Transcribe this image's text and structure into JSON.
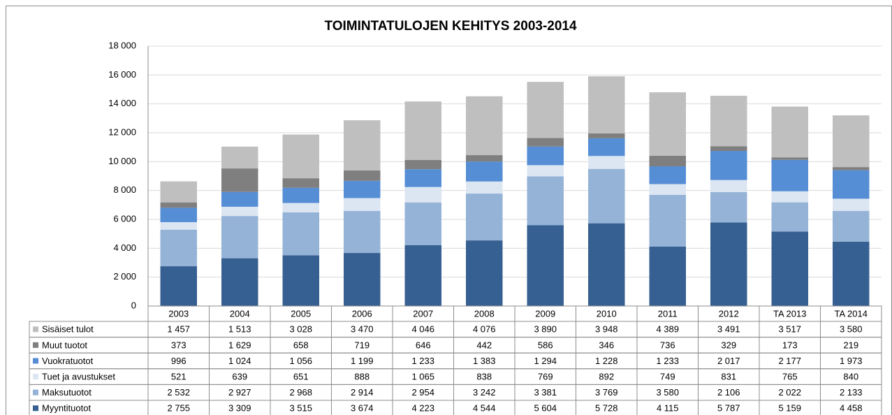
{
  "chart_data": {
    "type": "bar",
    "stacked": true,
    "title": "TOIMINTATULOJEN KEHITYS 2003-2014",
    "categories": [
      "2003",
      "2004",
      "2005",
      "2006",
      "2007",
      "2008",
      "2009",
      "2010",
      "2011",
      "2012",
      "TA 2013",
      "TA 2014"
    ],
    "ylim": [
      0,
      18000
    ],
    "yticks": [
      0,
      {
        "value": 2000,
        "label": "2 000"
      },
      {
        "value": 4000,
        "label": "4 000"
      },
      {
        "value": 6000,
        "label": "6 000"
      },
      {
        "value": 8000,
        "label": "8 000"
      },
      {
        "value": 10000,
        "label": "10 000"
      },
      {
        "value": 12000,
        "label": "12 000"
      },
      {
        "value": 14000,
        "label": "14 000"
      },
      {
        "value": 16000,
        "label": "16 000"
      },
      {
        "value": 18000,
        "label": "18 000"
      }
    ],
    "grid": true,
    "series": [
      {
        "name": "Myyntituotot",
        "color": "#376092",
        "values": [
          2755,
          3309,
          3515,
          3674,
          4223,
          4544,
          5604,
          5728,
          4115,
          5787,
          5159,
          4458
        ],
        "value_labels": [
          "2 755",
          "3 309",
          "3 515",
          "3 674",
          "4 223",
          "4 544",
          "5 604",
          "5 728",
          "4 115",
          "5 787",
          "5 159",
          "4 458"
        ]
      },
      {
        "name": "Maksutuotot",
        "color": "#95b3d7",
        "values": [
          2532,
          2927,
          2968,
          2914,
          2954,
          3242,
          3381,
          3769,
          3580,
          2106,
          2022,
          2133
        ],
        "value_labels": [
          "2 532",
          "2 927",
          "2 968",
          "2 914",
          "2 954",
          "3 242",
          "3 381",
          "3 769",
          "3 580",
          "2 106",
          "2 022",
          "2 133"
        ]
      },
      {
        "name": "Tuet ja avustukset",
        "color": "#dce6f2",
        "values": [
          521,
          639,
          651,
          888,
          1065,
          838,
          769,
          892,
          749,
          831,
          765,
          840
        ],
        "value_labels": [
          "521",
          "639",
          "651",
          "888",
          "1 065",
          "838",
          "769",
          "892",
          "749",
          "831",
          "765",
          "840"
        ]
      },
      {
        "name": "Vuokratuotot",
        "color": "#558ed5",
        "values": [
          996,
          1024,
          1056,
          1199,
          1233,
          1383,
          1294,
          1228,
          1233,
          2017,
          2177,
          1973
        ],
        "value_labels": [
          "996",
          "1 024",
          "1 056",
          "1 199",
          "1 233",
          "1 383",
          "1 294",
          "1 228",
          "1 233",
          "2 017",
          "2 177",
          "1 973"
        ]
      },
      {
        "name": "Muut tuotot",
        "color": "#7f7f7f",
        "values": [
          373,
          1629,
          658,
          719,
          646,
          442,
          586,
          346,
          736,
          329,
          173,
          219
        ],
        "value_labels": [
          "373",
          "1 629",
          "658",
          "719",
          "646",
          "442",
          "586",
          "346",
          "736",
          "329",
          "173",
          "219"
        ]
      },
      {
        "name": "Sisäiset tulot",
        "color": "#bfbfbf",
        "values": [
          1457,
          1513,
          3028,
          3470,
          4046,
          4076,
          3890,
          3948,
          4389,
          3491,
          3517,
          3580
        ],
        "value_labels": [
          "1 457",
          "1 513",
          "3 028",
          "3 470",
          "4 046",
          "4 076",
          "3 890",
          "3 948",
          "4 389",
          "3 491",
          "3 517",
          "3 580"
        ]
      }
    ]
  }
}
